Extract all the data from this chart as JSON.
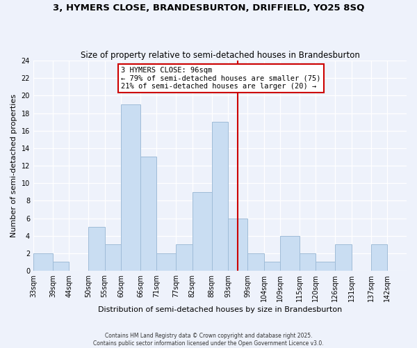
{
  "title": "3, HYMERS CLOSE, BRANDESBURTON, DRIFFIELD, YO25 8SQ",
  "subtitle": "Size of property relative to semi-detached houses in Brandesburton",
  "xlabel": "Distribution of semi-detached houses by size in Brandesburton",
  "ylabel": "Number of semi-detached properties",
  "bins": [
    33,
    39,
    44,
    50,
    55,
    60,
    66,
    71,
    77,
    82,
    88,
    93,
    99,
    104,
    109,
    115,
    120,
    126,
    131,
    137,
    142,
    148
  ],
  "counts": [
    2,
    1,
    0,
    5,
    3,
    19,
    13,
    2,
    3,
    9,
    17,
    6,
    2,
    1,
    4,
    2,
    1,
    3,
    0,
    3,
    0
  ],
  "tick_labels": [
    "33sqm",
    "39sqm",
    "44sqm",
    "50sqm",
    "55sqm",
    "60sqm",
    "66sqm",
    "71sqm",
    "77sqm",
    "82sqm",
    "88sqm",
    "93sqm",
    "99sqm",
    "104sqm",
    "109sqm",
    "115sqm",
    "120sqm",
    "126sqm",
    "131sqm",
    "137sqm",
    "142sqm"
  ],
  "bar_color": "#c9ddf2",
  "bar_edge_color": "#9fbcd8",
  "bg_color": "#eef2fb",
  "grid_color": "#ffffff",
  "vline_x": 96,
  "vline_color": "#cc0000",
  "annotation_title": "3 HYMERS CLOSE: 96sqm",
  "annotation_line1": "← 79% of semi-detached houses are smaller (75)",
  "annotation_line2": "21% of semi-detached houses are larger (20) →",
  "annotation_box_color": "#ffffff",
  "annotation_box_edge": "#cc0000",
  "footer1": "Contains HM Land Registry data © Crown copyright and database right 2025.",
  "footer2": "Contains public sector information licensed under the Open Government Licence v3.0.",
  "ylim": [
    0,
    24
  ],
  "yticks": [
    0,
    2,
    4,
    6,
    8,
    10,
    12,
    14,
    16,
    18,
    20,
    22,
    24
  ]
}
